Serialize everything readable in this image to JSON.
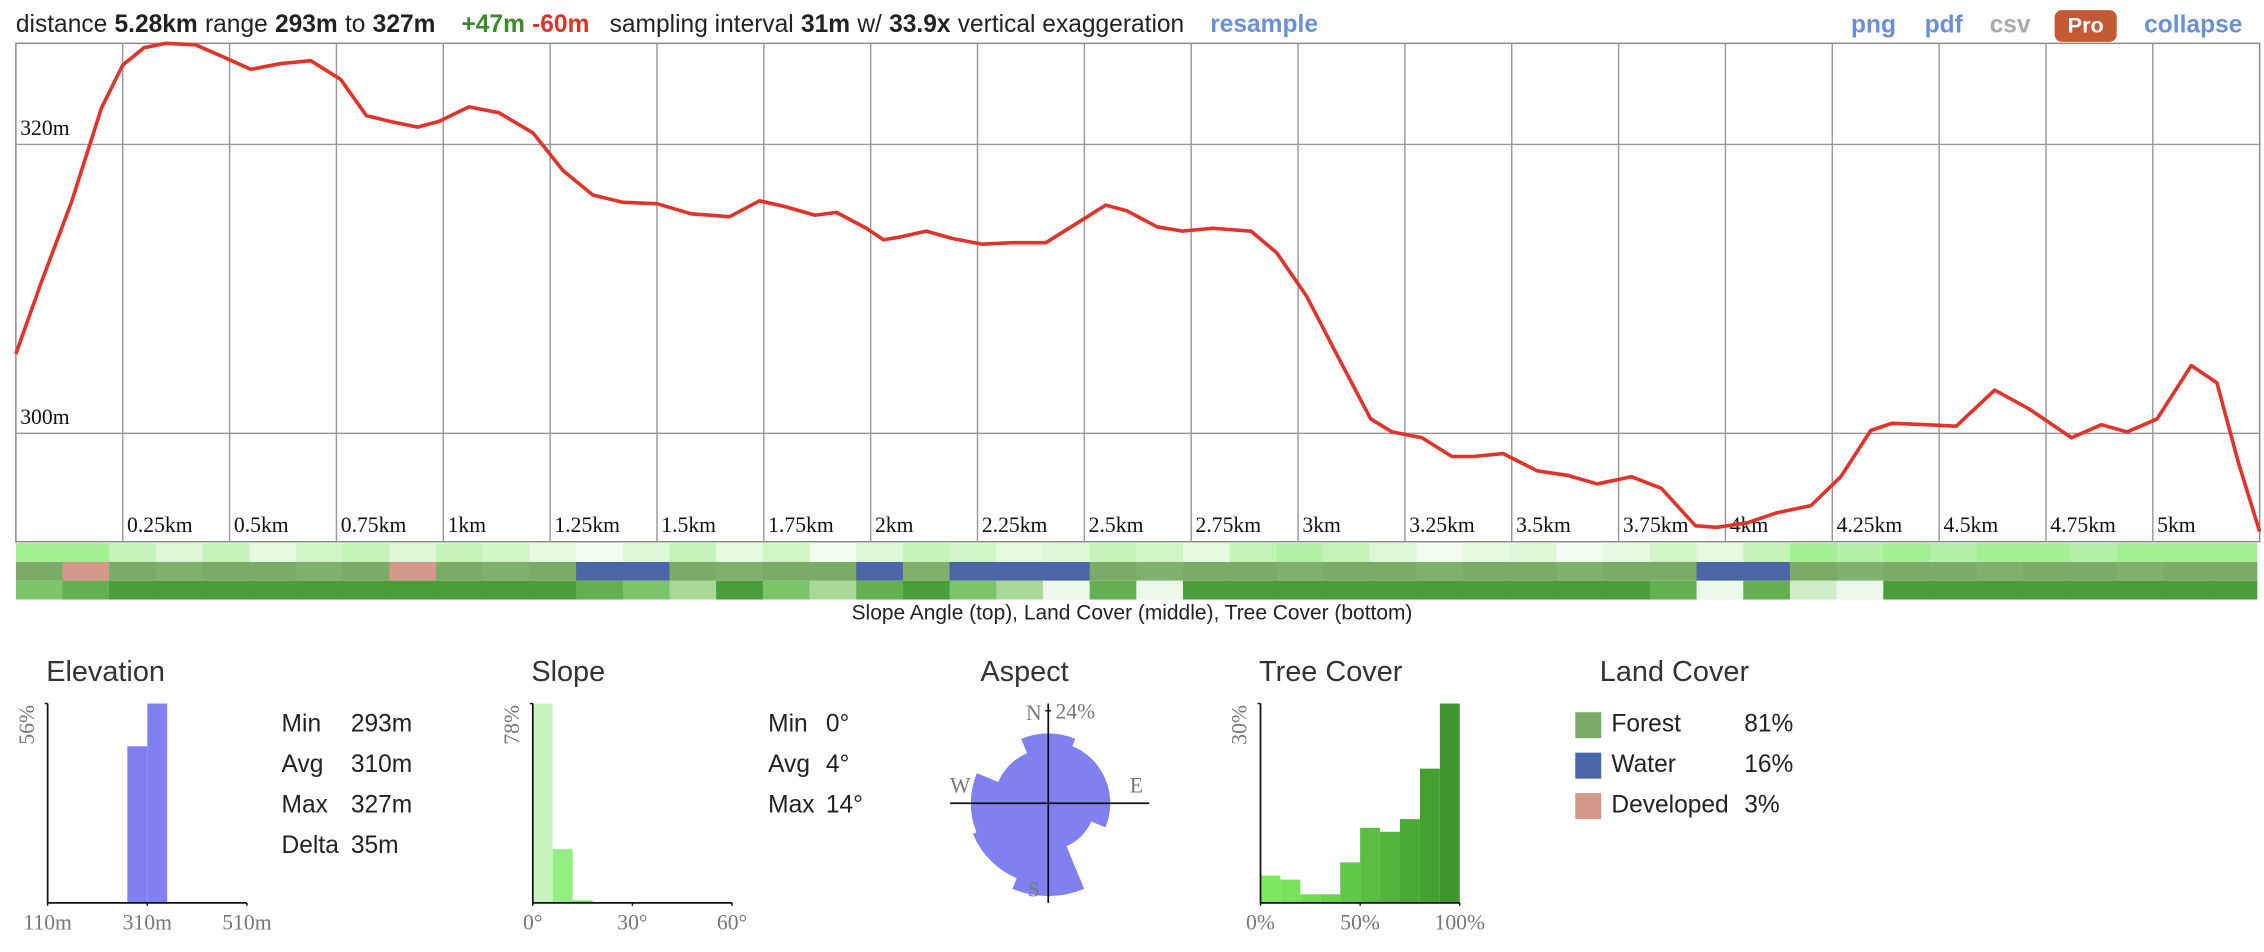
{
  "header": {
    "distance_label": "distance",
    "distance": "5.28km",
    "range_label": "range",
    "range_min": "293m",
    "to": "to",
    "range_max": "327m",
    "gain": "+47m",
    "loss": "-60m",
    "interval_label": "sampling interval",
    "interval": "31m",
    "with": "w/",
    "exaggeration": "33.9x",
    "exaggeration_label": "vertical exaggeration",
    "resample": "resample",
    "links": [
      "png",
      "pdf",
      "csv",
      "Pro",
      "collapse"
    ]
  },
  "chart_data": [
    {
      "type": "line",
      "color": "#e0332a",
      "x": [
        0,
        0.06,
        0.13,
        0.2,
        0.25,
        0.3,
        0.35,
        0.42,
        0.49,
        0.55,
        0.62,
        0.69,
        0.76,
        0.82,
        0.875,
        0.94,
        0.99,
        1.06,
        1.13,
        1.21,
        1.28,
        1.35,
        1.42,
        1.5,
        1.58,
        1.67,
        1.74,
        1.8,
        1.87,
        1.92,
        1.99,
        2.03,
        2.07,
        2.13,
        2.19,
        2.26,
        2.33,
        2.41,
        2.48,
        2.55,
        2.6,
        2.67,
        2.73,
        2.8,
        2.89,
        2.95,
        3.02,
        3.09,
        3.17,
        3.22,
        3.29,
        3.36,
        3.41,
        3.48,
        3.56,
        3.63,
        3.7,
        3.78,
        3.85,
        3.93,
        3.98,
        4.05,
        4.12,
        4.2,
        4.27,
        4.34,
        4.39,
        4.47,
        4.54,
        4.63,
        4.71,
        4.81,
        4.88,
        4.94,
        5.01,
        5.09,
        5.15,
        5.2,
        5.25
      ],
      "values": [
        305.5,
        310.5,
        316,
        322.5,
        325.5,
        326.7,
        327,
        326.9,
        326,
        325.2,
        325.6,
        325.8,
        324.5,
        322,
        321.6,
        321.2,
        321.6,
        322.6,
        322.2,
        320.8,
        318.2,
        316.5,
        316,
        315.9,
        315.2,
        315,
        316.1,
        315.7,
        315.1,
        315.3,
        314.2,
        313.4,
        313.6,
        314,
        313.5,
        313.1,
        313.2,
        313.2,
        314.5,
        315.8,
        315.4,
        314.3,
        314,
        314.2,
        314,
        312.5,
        309.5,
        305.5,
        301,
        300.1,
        299.7,
        298.4,
        298.4,
        298.6,
        297.4,
        297.1,
        296.5,
        297,
        296.2,
        293.6,
        293.5,
        293.8,
        294.5,
        295,
        297,
        300.2,
        300.7,
        300.6,
        300.5,
        303,
        301.7,
        299.7,
        300.6,
        300.1,
        301,
        304.7,
        303.5,
        298,
        293.2
      ],
      "xlim": [
        0,
        5.25
      ],
      "xticks": [
        {
          "value": 0.25,
          "label": "0.25km"
        },
        {
          "value": 0.5,
          "label": "0.5km"
        },
        {
          "value": 0.75,
          "label": "0.75km"
        },
        {
          "value": 1,
          "label": "1km"
        },
        {
          "value": 1.25,
          "label": "1.25km"
        },
        {
          "value": 1.5,
          "label": "1.5km"
        },
        {
          "value": 1.75,
          "label": "1.75km"
        },
        {
          "value": 2,
          "label": "2km"
        },
        {
          "value": 2.25,
          "label": "2.25km"
        },
        {
          "value": 2.5,
          "label": "2.5km"
        },
        {
          "value": 2.75,
          "label": "2.75km"
        },
        {
          "value": 3,
          "label": "3km"
        },
        {
          "value": 3.25,
          "label": "3.25km"
        },
        {
          "value": 3.5,
          "label": "3.5km"
        },
        {
          "value": 3.75,
          "label": "3.75km"
        },
        {
          "value": 4,
          "label": "4km"
        },
        {
          "value": 4.25,
          "label": "4.25km"
        },
        {
          "value": 4.5,
          "label": "4.5km"
        },
        {
          "value": 4.75,
          "label": "4.75km"
        },
        {
          "value": 5,
          "label": "5km"
        }
      ],
      "ylim": [
        292.5,
        327
      ],
      "yticks": [
        {
          "value": 300,
          "label": "300m"
        },
        {
          "value": 320,
          "label": "320m"
        }
      ],
      "grid": true
    },
    {
      "type": "histogram",
      "title": "Elevation",
      "color": "#8080f0",
      "bins": [
        270,
        310,
        350
      ],
      "counts": [
        44,
        56
      ],
      "xlim": [
        110,
        510
      ],
      "xticks": [
        {
          "value": 110,
          "label": "110m"
        },
        {
          "value": 310,
          "label": "310m"
        },
        {
          "value": 510,
          "label": "510m"
        }
      ],
      "ylim": [
        0,
        56
      ],
      "yticks": [
        {
          "value": 56,
          "label": "56%"
        }
      ],
      "stats": [
        [
          "Min",
          "293m"
        ],
        [
          "Avg",
          "310m"
        ],
        [
          "Max",
          "327m"
        ],
        [
          "Delta",
          "35m"
        ]
      ]
    },
    {
      "type": "histogram",
      "title": "Slope",
      "colors": [
        "#c8f5c0",
        "#92ee82",
        "#74e262"
      ],
      "bins": [
        0,
        6,
        12,
        18
      ],
      "counts": [
        78,
        21,
        1
      ],
      "xlim": [
        0,
        60
      ],
      "xticks": [
        {
          "value": 0,
          "label": "0°"
        },
        {
          "value": 30,
          "label": "30°"
        },
        {
          "value": 60,
          "label": "60°"
        }
      ],
      "ylim": [
        0,
        78
      ],
      "yticks": [
        {
          "value": 78,
          "label": "78%"
        }
      ],
      "stats": [
        [
          "Min",
          "0°"
        ],
        [
          "Avg",
          "4°"
        ],
        [
          "Max",
          "14°"
        ]
      ]
    },
    {
      "type": "rose",
      "title": "Aspect",
      "color": "#8080f0",
      "categories": [
        "N",
        null,
        "E",
        null,
        "S",
        null,
        "W",
        null
      ],
      "values": [
        18,
        16,
        16,
        12,
        24,
        21,
        20,
        14
      ],
      "rlim": [
        0,
        24
      ],
      "rticks": [
        {
          "value": 24,
          "label": "24%"
        }
      ]
    },
    {
      "type": "histogram",
      "title": "Tree Cover",
      "colors": [
        "#80e860",
        "#7ae25a",
        "#72da54",
        "#6ad24e",
        "#62c848",
        "#5abe42",
        "#52b43c",
        "#4aaa36",
        "#44a030",
        "#3e962c"
      ],
      "bins": [
        0,
        10,
        20,
        30,
        40,
        50,
        60,
        70,
        80,
        90,
        100
      ],
      "counts": [
        4.1,
        3.5,
        1.3,
        1.3,
        6.1,
        11.3,
        10.7,
        12.6,
        20.2,
        30
      ],
      "xlim": [
        0,
        100
      ],
      "xticks": [
        {
          "value": 0,
          "label": "0%"
        },
        {
          "value": 50,
          "label": "50%"
        },
        {
          "value": 100,
          "label": "100%"
        }
      ],
      "ylim": [
        0,
        30
      ],
      "yticks": [
        {
          "value": 30,
          "label": "30%"
        }
      ]
    }
  ],
  "bands": [
    [
      "#a4f094",
      "#a4f094",
      "#c4f4b8",
      "#ddf8d6",
      "#c4f4b8",
      "#e6fae0",
      "#d0f6c6",
      "#c4f4b8",
      "#ddf8d6",
      "#c4f4b8",
      "#d0f6c6",
      "#e6fae0",
      "#f2fcf0",
      "#ddf8d6",
      "#c4f4b8",
      "#e6fae0",
      "#d0f6c6",
      "#f2fcf0",
      "#ddf8d6",
      "#c4f4b8",
      "#d0f6c6",
      "#e6fae0",
      "#ddf8d6",
      "#c4f4b8",
      "#d0f6c6",
      "#e6fae0",
      "#c4f4b8",
      "#b4f0a6",
      "#c4f4b8",
      "#ddf8d6",
      "#f2fcf0",
      "#e6fae0",
      "#ddf8d6",
      "#f2fcf0",
      "#e6fae0",
      "#d0f6c6",
      "#e6fae0",
      "#c4f4b8",
      "#a4f094",
      "#b4f0a6",
      "#a4f094",
      "#b4f0a6",
      "#a4f094",
      "#a4f094",
      "#b4f0a6",
      "#a4f094",
      "#a4f094",
      "#a4f094"
    ],
    [
      "#7aac68",
      "#d4998a",
      "#7aac68",
      "#80b06e",
      "#7aac68",
      "#7aac68",
      "#80b06e",
      "#7aac68",
      "#d4998a",
      "#7aac68",
      "#80b06e",
      "#7aac68",
      "#4a66a6",
      "#4a66a6",
      "#7aac68",
      "#80b06e",
      "#7aac68",
      "#7aac68",
      "#4a66a6",
      "#80b06e",
      "#4a66a6",
      "#4a66a6",
      "#4a66a6",
      "#7aac68",
      "#80b06e",
      "#7aac68",
      "#7aac68",
      "#80b06e",
      "#7aac68",
      "#7aac68",
      "#80b06e",
      "#7aac68",
      "#7aac68",
      "#80b06e",
      "#7aac68",
      "#7aac68",
      "#4a66a6",
      "#4a66a6",
      "#7aac68",
      "#80b06e",
      "#7aac68",
      "#7aac68",
      "#80b06e",
      "#7aac68",
      "#7aac68",
      "#80b06e",
      "#7aac68",
      "#7aac68"
    ],
    [
      "#7cc46a",
      "#64b050",
      "#4a9e3a",
      "#4a9e3a",
      "#4a9e3a",
      "#4a9e3a",
      "#4a9e3a",
      "#4a9e3a",
      "#4a9e3a",
      "#4a9e3a",
      "#4a9e3a",
      "#4a9e3a",
      "#64b050",
      "#7cc46a",
      "#a8d898",
      "#4a9e3a",
      "#7cc46a",
      "#a8d898",
      "#64b050",
      "#4a9e3a",
      "#7cc46a",
      "#a8d898",
      "#eef8ea",
      "#64b050",
      "#eef8ea",
      "#4a9e3a",
      "#4a9e3a",
      "#4a9e3a",
      "#4a9e3a",
      "#4a9e3a",
      "#4a9e3a",
      "#4a9e3a",
      "#4a9e3a",
      "#4a9e3a",
      "#4a9e3a",
      "#64b050",
      "#eef8ea",
      "#64b050",
      "#d0ecc8",
      "#eef8ea",
      "#4a9e3a",
      "#4a9e3a",
      "#4a9e3a",
      "#4a9e3a",
      "#4a9e3a",
      "#4a9e3a",
      "#4a9e3a",
      "#4a9e3a"
    ]
  ],
  "caption": "Slope Angle (top), Land Cover (middle), Tree Cover (bottom)",
  "land_cover": {
    "title": "Land Cover",
    "items": [
      {
        "name": "Forest",
        "color": "#7aac68",
        "value": "81%"
      },
      {
        "name": "Water",
        "color": "#4a66a6",
        "value": "16%"
      },
      {
        "name": "Developed",
        "color": "#d4998a",
        "value": "3%"
      }
    ]
  }
}
